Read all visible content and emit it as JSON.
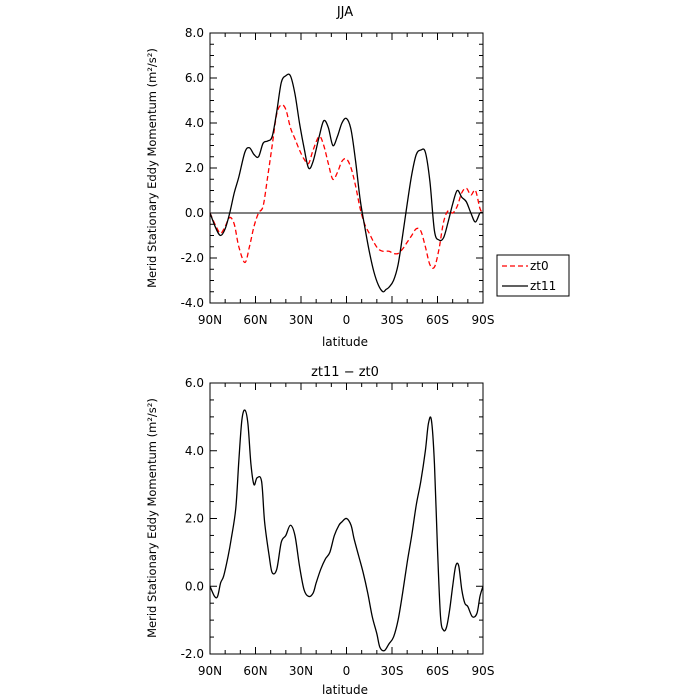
{
  "chart_data": [
    {
      "type": "line",
      "title": "JJA",
      "xlabel": "latitude",
      "ylabel": "Merid Stationary Eddy Momentum (m²/s²)",
      "xticks": [
        {
          "value": 90,
          "label": "90N"
        },
        {
          "value": 60,
          "label": "60N"
        },
        {
          "value": 30,
          "label": "30N"
        },
        {
          "value": 0,
          "label": "0"
        },
        {
          "value": -30,
          "label": "30S"
        },
        {
          "value": -60,
          "label": "60S"
        },
        {
          "value": -90,
          "label": "90S"
        }
      ],
      "xlim": [
        90,
        -90
      ],
      "ylim": [
        -4,
        8
      ],
      "yticks": [
        {
          "value": -4,
          "label": "-4.0"
        },
        {
          "value": -2,
          "label": "-2.0"
        },
        {
          "value": 0,
          "label": "0.0"
        },
        {
          "value": 2,
          "label": "2.0"
        },
        {
          "value": 4,
          "label": "4.0"
        },
        {
          "value": 6,
          "label": "6.0"
        },
        {
          "value": 8,
          "label": "8.0"
        }
      ],
      "zero_line": true,
      "legend_position": "outside-right",
      "series": [
        {
          "name": "zt0",
          "color": "#ff0000",
          "dash": "dashed",
          "x": [
            90,
            86,
            83,
            80,
            77,
            74,
            71,
            67,
            64,
            61,
            58,
            55,
            52,
            49,
            46,
            43,
            40,
            37,
            34,
            31,
            28,
            25,
            22,
            18,
            15,
            12,
            9,
            6,
            3,
            0,
            -3,
            -6,
            -9,
            -12,
            -15,
            -18,
            -21,
            -24,
            -28,
            -31,
            -34,
            -37,
            -40,
            -43,
            -46,
            -49,
            -52,
            -55,
            -58,
            -61,
            -64,
            -67,
            -70,
            -73,
            -76,
            -79,
            -82,
            -85,
            -88,
            -90
          ],
          "y": [
            0.0,
            -0.6,
            -0.9,
            -0.6,
            -0.2,
            -0.5,
            -1.5,
            -2.2,
            -1.5,
            -0.6,
            0.0,
            0.3,
            1.6,
            3.0,
            4.4,
            4.8,
            4.6,
            3.8,
            3.3,
            2.8,
            2.4,
            2.2,
            2.8,
            3.4,
            3.0,
            2.2,
            1.5,
            1.8,
            2.3,
            2.4,
            2.0,
            1.2,
            0.2,
            -0.5,
            -0.9,
            -1.3,
            -1.6,
            -1.7,
            -1.7,
            -1.8,
            -1.8,
            -1.6,
            -1.3,
            -1.0,
            -0.7,
            -0.8,
            -1.5,
            -2.3,
            -2.4,
            -1.6,
            -0.4,
            0.1,
            0.0,
            0.3,
            0.9,
            1.1,
            0.8,
            1.0,
            0.2,
            0.0
          ]
        },
        {
          "name": "zt11",
          "color": "#000000",
          "dash": "solid",
          "x": [
            90,
            86,
            83,
            80,
            77,
            74,
            71,
            67,
            64,
            61,
            58,
            55,
            52,
            49,
            46,
            43,
            40,
            37,
            34,
            31,
            28,
            25,
            22,
            18,
            15,
            12,
            9,
            6,
            3,
            0,
            -3,
            -6,
            -9,
            -12,
            -15,
            -18,
            -21,
            -24,
            -26,
            -28,
            -31,
            -34,
            -37,
            -40,
            -43,
            -46,
            -49,
            -52,
            -55,
            -58,
            -61,
            -64,
            -67,
            -70,
            -73,
            -76,
            -79,
            -82,
            -85,
            -88,
            -90
          ],
          "y": [
            0.0,
            -0.7,
            -1.0,
            -0.7,
            0.0,
            0.9,
            1.6,
            2.7,
            2.9,
            2.6,
            2.5,
            3.1,
            3.2,
            3.4,
            4.5,
            5.8,
            6.1,
            6.1,
            5.3,
            4.0,
            2.9,
            2.0,
            2.3,
            3.4,
            4.1,
            3.8,
            3.0,
            3.4,
            4.0,
            4.2,
            3.7,
            2.3,
            0.6,
            -0.6,
            -1.7,
            -2.6,
            -3.2,
            -3.5,
            -3.4,
            -3.3,
            -3.0,
            -2.3,
            -1.0,
            0.4,
            1.7,
            2.6,
            2.8,
            2.7,
            1.4,
            -0.8,
            -1.2,
            -1.1,
            -0.4,
            0.4,
            1.0,
            0.7,
            0.5,
            0.0,
            -0.4,
            0.0,
            0.0
          ]
        }
      ]
    },
    {
      "type": "line",
      "title": "zt11 − zt0",
      "xlabel": "latitude",
      "ylabel": "Merid Stationary Eddy Momentum (m²/s²)",
      "xticks": [
        {
          "value": 90,
          "label": "90N"
        },
        {
          "value": 60,
          "label": "60N"
        },
        {
          "value": 30,
          "label": "30N"
        },
        {
          "value": 0,
          "label": "0"
        },
        {
          "value": -30,
          "label": "30S"
        },
        {
          "value": -60,
          "label": "60S"
        },
        {
          "value": -90,
          "label": "90S"
        }
      ],
      "xlim": [
        90,
        -90
      ],
      "ylim": [
        -2,
        6
      ],
      "yticks": [
        {
          "value": -2,
          "label": "-2.0"
        },
        {
          "value": 0,
          "label": "0.0"
        },
        {
          "value": 2,
          "label": "2.0"
        },
        {
          "value": 4,
          "label": "4.0"
        },
        {
          "value": 6,
          "label": "6.0"
        }
      ],
      "series": [
        {
          "color": "#000000",
          "dash": "solid",
          "x": [
            90,
            87,
            85,
            83,
            81,
            78,
            76,
            73,
            71,
            69,
            67,
            65,
            63,
            61,
            59,
            56,
            54,
            51,
            49,
            46,
            43,
            40,
            37,
            34,
            31,
            28,
            25,
            22,
            20,
            17,
            14,
            11,
            8,
            5,
            3,
            0,
            -3,
            -5,
            -8,
            -11,
            -14,
            -17,
            -20,
            -22,
            -25,
            -28,
            -31,
            -34,
            -37,
            -40,
            -43,
            -46,
            -49,
            -52,
            -54,
            -56,
            -58,
            -60,
            -62,
            -64,
            -66,
            -68,
            -70,
            -72,
            -74,
            -76,
            -78,
            -80,
            -83,
            -86,
            -88,
            -90
          ],
          "y": [
            0.0,
            -0.3,
            -0.3,
            0.1,
            0.3,
            0.9,
            1.4,
            2.3,
            3.7,
            4.9,
            5.2,
            4.8,
            3.6,
            3.0,
            3.2,
            3.1,
            1.9,
            0.9,
            0.4,
            0.5,
            1.3,
            1.5,
            1.8,
            1.5,
            0.6,
            -0.1,
            -0.3,
            -0.2,
            0.1,
            0.5,
            0.8,
            1.0,
            1.5,
            1.8,
            1.9,
            2.0,
            1.8,
            1.4,
            0.9,
            0.4,
            -0.2,
            -0.9,
            -1.4,
            -1.8,
            -1.9,
            -1.7,
            -1.5,
            -1.0,
            -0.2,
            0.7,
            1.5,
            2.4,
            3.1,
            4.0,
            4.8,
            4.9,
            3.6,
            1.1,
            -0.9,
            -1.3,
            -1.2,
            -0.7,
            0.0,
            0.6,
            0.6,
            -0.1,
            -0.5,
            -0.6,
            -0.9,
            -0.8,
            -0.3,
            0.0
          ]
        }
      ]
    }
  ]
}
